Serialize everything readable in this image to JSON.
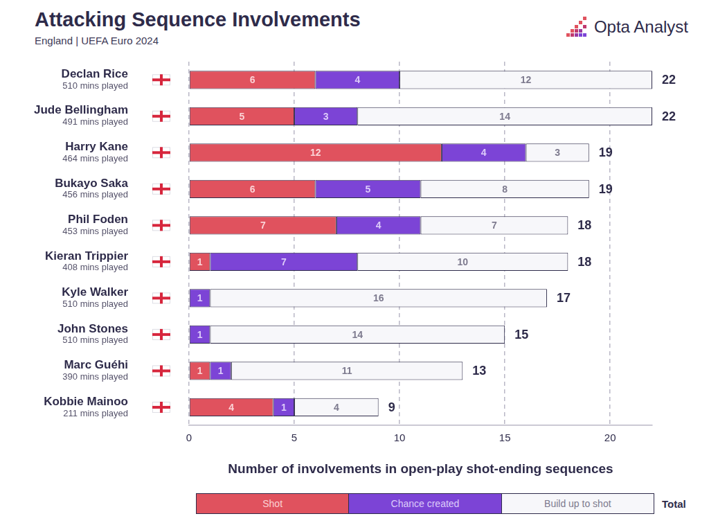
{
  "chart_data": {
    "type": "bar",
    "title": "Attacking Sequence Involvements",
    "subtitle": "England | UEFA Euro 2024",
    "source": "Opta Analyst",
    "orientation": "horizontal",
    "stacked": true,
    "data_labels": true,
    "grid": true,
    "legend": "bottom",
    "categories": [
      "Declan Rice",
      "Jude Bellingham",
      "Harry Kane",
      "Bukayo Saka",
      "Phil Foden",
      "Kieran Trippier",
      "Kyle Walker",
      "John Stones",
      "Marc Guéhi",
      "Kobbie Mainoo"
    ],
    "subtitles": [
      "510 mins played",
      "491 mins played",
      "464 mins played",
      "456 mins played",
      "453 mins played",
      "408 mins played",
      "510 mins played",
      "510 mins played",
      "390 mins played",
      "211 mins played"
    ],
    "series": [
      {
        "name": "Shot",
        "color": "#e0525e",
        "values": [
          6,
          5,
          12,
          6,
          7,
          1,
          0,
          0,
          1,
          4
        ]
      },
      {
        "name": "Chance created",
        "color": "#7c44d6",
        "values": [
          4,
          3,
          4,
          5,
          4,
          7,
          1,
          1,
          1,
          1
        ]
      },
      {
        "name": "Build up to shot",
        "color": "#f7f7fa",
        "values": [
          12,
          14,
          3,
          8,
          7,
          10,
          16,
          14,
          11,
          4
        ]
      }
    ],
    "totals": [
      22,
      22,
      19,
      19,
      18,
      18,
      17,
      15,
      13,
      9
    ],
    "total_label": "Total",
    "x_label": "Number of involvements in open-play shot-ending sequences",
    "xlim": [
      0,
      22
    ],
    "xticks": [
      0,
      5,
      10,
      15,
      20
    ]
  }
}
